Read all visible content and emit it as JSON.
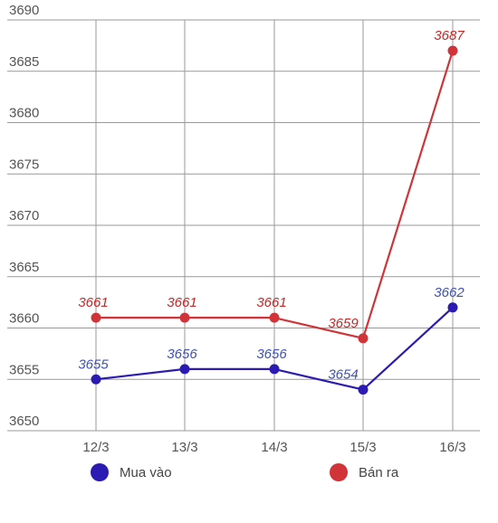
{
  "chart_data": {
    "type": "line",
    "title": "",
    "xlabel": "",
    "ylabel": "",
    "categories": [
      "12/3",
      "13/3",
      "14/3",
      "15/3",
      "16/3"
    ],
    "ylim": [
      3650,
      3690
    ],
    "yticks": [
      "3650",
      "3655",
      "3660",
      "3665",
      "3670",
      "3675",
      "3680",
      "3685",
      "3690"
    ],
    "grid": true,
    "legend_position": "bottom",
    "series": [
      {
        "name": "Mua vào",
        "color": "#2c1bb3",
        "label_color": "#3f51b5",
        "values": [
          3655,
          3656,
          3656,
          3654,
          3662
        ]
      },
      {
        "name": "Bán ra",
        "color": "#d13438",
        "label_color": "#c62828",
        "values": [
          3661,
          3661,
          3661,
          3659,
          3687
        ]
      }
    ]
  }
}
